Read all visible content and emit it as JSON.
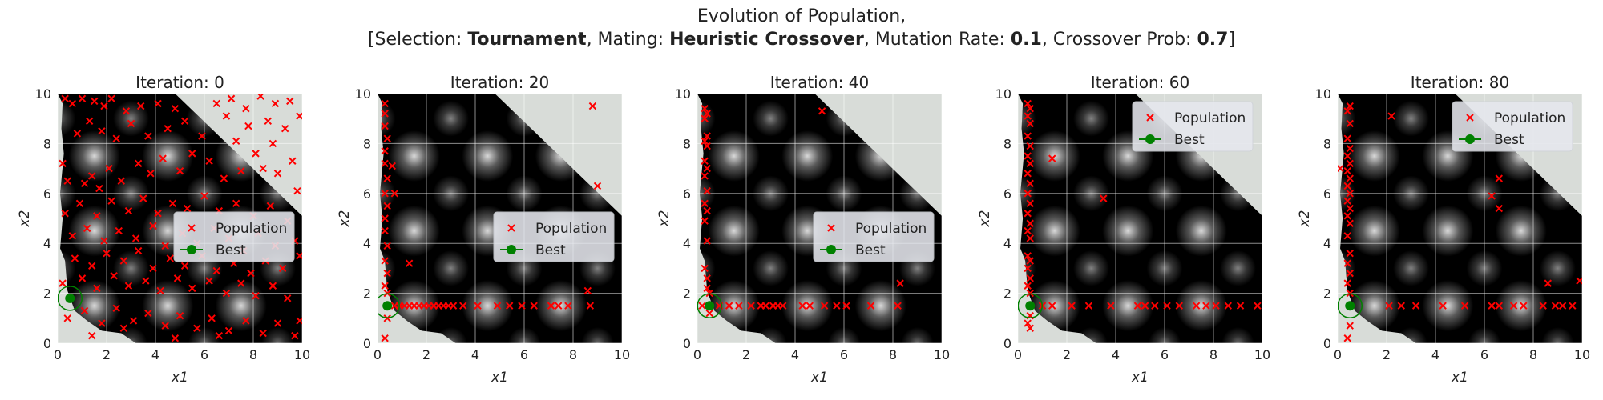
{
  "figure": {
    "title_line1": "Evolution of Population,",
    "title_line2": {
      "selection_label": "[Selection: ",
      "selection_value": "Tournament",
      "mating_label": ", Mating: ",
      "mating_value": "Heuristic Crossover",
      "mutation_label": ", Mutation Rate: ",
      "mutation_value": "0.1",
      "crossover_label": ", Crossover Prob: ",
      "crossover_value": "0.7",
      "closing": "]"
    }
  },
  "colors": {
    "population": "#ff0000",
    "best": "#008000",
    "infeasible": "#d8dcd8",
    "grid": "#ffffff",
    "legend_bg": "#e6e8ee"
  },
  "chart_data": [
    {
      "type": "scatter",
      "title": "Iteration: 0",
      "xlabel": "x1",
      "ylabel": "x2",
      "xlim": [
        0,
        10
      ],
      "ylim": [
        0,
        10
      ],
      "xticks": [
        0,
        2,
        4,
        6,
        8,
        10
      ],
      "yticks": [
        0,
        2,
        4,
        6,
        8,
        10
      ],
      "grid": true,
      "legend": {
        "placement": "center-right",
        "entries": [
          "Population",
          "Best"
        ]
      },
      "best": [
        0.5,
        1.8
      ],
      "population": [
        [
          0.3,
          9.8
        ],
        [
          0.6,
          9.6
        ],
        [
          1.0,
          9.8
        ],
        [
          1.5,
          9.7
        ],
        [
          1.9,
          9.5
        ],
        [
          2.2,
          9.8
        ],
        [
          2.8,
          9.3
        ],
        [
          3.4,
          9.5
        ],
        [
          4.1,
          9.6
        ],
        [
          4.8,
          9.4
        ],
        [
          0.2,
          7.2
        ],
        [
          0.8,
          8.4
        ],
        [
          1.3,
          8.9
        ],
        [
          1.8,
          8.5
        ],
        [
          2.4,
          8.2
        ],
        [
          3.0,
          8.8
        ],
        [
          3.7,
          8.3
        ],
        [
          4.5,
          8.6
        ],
        [
          5.2,
          8.9
        ],
        [
          5.9,
          8.3
        ],
        [
          6.5,
          9.6
        ],
        [
          7.1,
          9.8
        ],
        [
          7.7,
          9.4
        ],
        [
          8.3,
          9.9
        ],
        [
          8.9,
          9.6
        ],
        [
          9.5,
          9.7
        ],
        [
          6.9,
          9.1
        ],
        [
          7.8,
          8.7
        ],
        [
          8.6,
          8.9
        ],
        [
          9.3,
          8.6
        ],
        [
          9.9,
          9.1
        ],
        [
          7.3,
          8.1
        ],
        [
          8.1,
          7.6
        ],
        [
          8.8,
          8.0
        ],
        [
          9.6,
          7.3
        ],
        [
          9.0,
          6.8
        ],
        [
          9.8,
          6.1
        ],
        [
          8.4,
          7.0
        ],
        [
          0.4,
          6.5
        ],
        [
          1.1,
          6.4
        ],
        [
          1.4,
          6.7
        ],
        [
          1.7,
          6.2
        ],
        [
          2.1,
          7.0
        ],
        [
          2.6,
          6.5
        ],
        [
          3.3,
          7.2
        ],
        [
          3.8,
          6.8
        ],
        [
          4.3,
          7.4
        ],
        [
          5.0,
          6.9
        ],
        [
          5.5,
          7.6
        ],
        [
          6.2,
          7.3
        ],
        [
          6.8,
          6.6
        ],
        [
          7.5,
          6.9
        ],
        [
          0.3,
          5.2
        ],
        [
          0.9,
          5.6
        ],
        [
          1.6,
          5.1
        ],
        [
          2.2,
          5.7
        ],
        [
          2.9,
          5.3
        ],
        [
          3.5,
          5.8
        ],
        [
          4.1,
          5.2
        ],
        [
          4.7,
          5.6
        ],
        [
          5.3,
          5.4
        ],
        [
          6.0,
          5.9
        ],
        [
          6.6,
          5.3
        ],
        [
          7.3,
          5.6
        ],
        [
          8.0,
          5.1
        ],
        [
          8.7,
          5.5
        ],
        [
          9.4,
          4.9
        ],
        [
          0.6,
          4.3
        ],
        [
          1.2,
          4.6
        ],
        [
          1.9,
          4.1
        ],
        [
          2.5,
          4.5
        ],
        [
          3.2,
          4.2
        ],
        [
          3.9,
          4.7
        ],
        [
          4.4,
          3.9
        ],
        [
          5.1,
          4.4
        ],
        [
          5.7,
          4.0
        ],
        [
          6.4,
          4.6
        ],
        [
          7.0,
          4.2
        ],
        [
          7.6,
          3.7
        ],
        [
          8.2,
          4.4
        ],
        [
          8.9,
          3.9
        ],
        [
          9.7,
          4.1
        ],
        [
          0.7,
          3.4
        ],
        [
          1.4,
          3.1
        ],
        [
          2.0,
          3.6
        ],
        [
          2.7,
          3.3
        ],
        [
          3.3,
          3.7
        ],
        [
          3.9,
          3.0
        ],
        [
          4.6,
          3.4
        ],
        [
          5.2,
          3.1
        ],
        [
          5.9,
          3.5
        ],
        [
          6.5,
          2.9
        ],
        [
          7.2,
          3.2
        ],
        [
          7.9,
          2.8
        ],
        [
          8.5,
          3.3
        ],
        [
          9.2,
          3.0
        ],
        [
          9.9,
          3.5
        ],
        [
          0.2,
          2.4
        ],
        [
          1.0,
          2.6
        ],
        [
          1.6,
          2.2
        ],
        [
          2.3,
          2.7
        ],
        [
          2.9,
          2.3
        ],
        [
          3.6,
          2.5
        ],
        [
          4.2,
          2.1
        ],
        [
          4.9,
          2.6
        ],
        [
          5.5,
          2.2
        ],
        [
          6.2,
          2.5
        ],
        [
          6.9,
          2.0
        ],
        [
          7.5,
          2.4
        ],
        [
          8.1,
          1.9
        ],
        [
          8.8,
          2.3
        ],
        [
          9.4,
          1.8
        ],
        [
          0.4,
          1.0
        ],
        [
          1.1,
          1.3
        ],
        [
          1.8,
          0.8
        ],
        [
          2.4,
          1.4
        ],
        [
          3.1,
          0.9
        ],
        [
          3.7,
          1.2
        ],
        [
          4.4,
          0.7
        ],
        [
          5.0,
          1.1
        ],
        [
          5.7,
          0.6
        ],
        [
          6.3,
          1.0
        ],
        [
          7.0,
          0.5
        ],
        [
          7.7,
          0.9
        ],
        [
          8.4,
          0.4
        ],
        [
          9.0,
          0.8
        ],
        [
          9.7,
          0.3
        ],
        [
          1.4,
          0.3
        ],
        [
          2.7,
          0.6
        ],
        [
          4.8,
          0.2
        ],
        [
          6.6,
          0.3
        ],
        [
          9.9,
          0.9
        ]
      ]
    },
    {
      "type": "scatter",
      "title": "Iteration: 20",
      "xlabel": "x1",
      "ylabel": "x2",
      "xlim": [
        0,
        10
      ],
      "ylim": [
        0,
        10
      ],
      "xticks": [
        0,
        2,
        4,
        6,
        8,
        10
      ],
      "yticks": [
        0,
        2,
        4,
        6,
        8,
        10
      ],
      "grid": true,
      "legend": {
        "placement": "center-right",
        "entries": [
          "Population",
          "Best"
        ]
      },
      "best": [
        0.4,
        1.5
      ],
      "population": [
        [
          0.3,
          9.6
        ],
        [
          0.3,
          9.2
        ],
        [
          0.3,
          8.7
        ],
        [
          0.4,
          8.2
        ],
        [
          0.3,
          7.7
        ],
        [
          0.3,
          7.2
        ],
        [
          0.4,
          6.6
        ],
        [
          0.3,
          6.0
        ],
        [
          0.4,
          5.5
        ],
        [
          0.3,
          5.0
        ],
        [
          0.3,
          4.5
        ],
        [
          0.4,
          3.9
        ],
        [
          0.3,
          3.3
        ],
        [
          0.4,
          2.8
        ],
        [
          0.3,
          2.3
        ],
        [
          0.4,
          2.0
        ],
        [
          0.4,
          1.0
        ],
        [
          0.3,
          0.2
        ],
        [
          0.6,
          7.1
        ],
        [
          0.7,
          6.0
        ],
        [
          1.3,
          3.2
        ],
        [
          8.8,
          9.5
        ],
        [
          9.0,
          6.3
        ],
        [
          8.6,
          2.1
        ],
        [
          8.7,
          1.5
        ],
        [
          0.7,
          1.5
        ],
        [
          0.9,
          1.5
        ],
        [
          1.1,
          1.5
        ],
        [
          1.3,
          1.5
        ],
        [
          1.5,
          1.5
        ],
        [
          1.7,
          1.5
        ],
        [
          1.9,
          1.5
        ],
        [
          2.1,
          1.5
        ],
        [
          2.3,
          1.5
        ],
        [
          2.5,
          1.5
        ],
        [
          2.7,
          1.5
        ],
        [
          2.9,
          1.5
        ],
        [
          3.1,
          1.5
        ],
        [
          3.5,
          1.5
        ],
        [
          4.1,
          1.5
        ],
        [
          4.9,
          1.5
        ],
        [
          5.4,
          1.5
        ],
        [
          5.9,
          1.5
        ],
        [
          6.4,
          1.5
        ],
        [
          7.1,
          1.5
        ],
        [
          7.4,
          1.5
        ],
        [
          7.8,
          1.5
        ]
      ]
    },
    {
      "type": "scatter",
      "title": "Iteration: 40",
      "xlabel": "x1",
      "ylabel": "x2",
      "xlim": [
        0,
        10
      ],
      "ylim": [
        0,
        10
      ],
      "xticks": [
        0,
        2,
        4,
        6,
        8,
        10
      ],
      "yticks": [
        0,
        2,
        4,
        6,
        8,
        10
      ],
      "grid": true,
      "legend": {
        "placement": "center-right",
        "entries": [
          "Population",
          "Best"
        ]
      },
      "best": [
        0.5,
        1.5
      ],
      "population": [
        [
          0.3,
          9.4
        ],
        [
          0.4,
          9.2
        ],
        [
          0.3,
          9.0
        ],
        [
          0.4,
          8.3
        ],
        [
          0.3,
          8.1
        ],
        [
          0.4,
          7.9
        ],
        [
          0.3,
          7.3
        ],
        [
          0.4,
          7.0
        ],
        [
          0.3,
          6.7
        ],
        [
          0.4,
          6.1
        ],
        [
          0.3,
          5.6
        ],
        [
          0.4,
          5.3
        ],
        [
          0.3,
          4.9
        ],
        [
          0.4,
          4.1
        ],
        [
          0.3,
          3.0
        ],
        [
          0.4,
          2.6
        ],
        [
          0.4,
          2.2
        ],
        [
          0.5,
          2.0
        ],
        [
          0.5,
          1.2
        ],
        [
          0.2,
          1.5
        ],
        [
          5.1,
          9.3
        ],
        [
          0.9,
          1.5
        ],
        [
          1.3,
          1.5
        ],
        [
          1.7,
          1.5
        ],
        [
          2.2,
          1.5
        ],
        [
          2.6,
          1.5
        ],
        [
          2.8,
          1.5
        ],
        [
          3.1,
          1.5
        ],
        [
          3.3,
          1.5
        ],
        [
          3.5,
          1.5
        ],
        [
          4.3,
          1.5
        ],
        [
          4.6,
          1.5
        ],
        [
          5.2,
          1.5
        ],
        [
          5.7,
          1.5
        ],
        [
          6.1,
          1.5
        ],
        [
          7.1,
          1.5
        ],
        [
          8.2,
          1.5
        ],
        [
          8.3,
          2.4
        ]
      ]
    },
    {
      "type": "scatter",
      "title": "Iteration: 60",
      "xlabel": "x1",
      "ylabel": "x2",
      "xlim": [
        0,
        10
      ],
      "ylim": [
        0,
        10
      ],
      "xticks": [
        0,
        2,
        4,
        6,
        8,
        10
      ],
      "yticks": [
        0,
        2,
        4,
        6,
        8,
        10
      ],
      "grid": true,
      "legend": {
        "placement": "upper-right",
        "entries": [
          "Population",
          "Best"
        ]
      },
      "best": [
        0.5,
        1.5
      ],
      "population": [
        [
          0.4,
          9.6
        ],
        [
          0.5,
          9.4
        ],
        [
          0.4,
          9.1
        ],
        [
          0.5,
          8.8
        ],
        [
          0.4,
          8.3
        ],
        [
          0.5,
          7.9
        ],
        [
          0.4,
          7.5
        ],
        [
          0.5,
          7.2
        ],
        [
          0.4,
          6.8
        ],
        [
          0.5,
          6.4
        ],
        [
          0.4,
          6.0
        ],
        [
          0.5,
          5.6
        ],
        [
          0.4,
          5.2
        ],
        [
          0.5,
          4.8
        ],
        [
          0.4,
          4.5
        ],
        [
          0.5,
          4.2
        ],
        [
          0.4,
          3.5
        ],
        [
          0.5,
          3.3
        ],
        [
          0.4,
          3.0
        ],
        [
          0.5,
          2.6
        ],
        [
          0.4,
          2.3
        ],
        [
          0.5,
          2.0
        ],
        [
          0.5,
          1.1
        ],
        [
          0.4,
          0.8
        ],
        [
          0.5,
          0.6
        ],
        [
          1.4,
          7.4
        ],
        [
          3.5,
          5.8
        ],
        [
          1.0,
          1.5
        ],
        [
          1.4,
          1.5
        ],
        [
          2.2,
          1.5
        ],
        [
          2.9,
          1.5
        ],
        [
          3.8,
          1.5
        ],
        [
          4.9,
          1.5
        ],
        [
          5.2,
          1.5
        ],
        [
          5.6,
          1.5
        ],
        [
          6.1,
          1.5
        ],
        [
          6.6,
          1.5
        ],
        [
          7.3,
          1.5
        ],
        [
          7.7,
          1.5
        ],
        [
          8.1,
          1.5
        ],
        [
          8.6,
          1.5
        ],
        [
          9.1,
          1.5
        ],
        [
          9.8,
          1.5
        ]
      ]
    },
    {
      "type": "scatter",
      "title": "Iteration: 80",
      "xlabel": "x1",
      "ylabel": "x2",
      "xlim": [
        0,
        10
      ],
      "ylim": [
        0,
        10
      ],
      "xticks": [
        0,
        2,
        4,
        6,
        8,
        10
      ],
      "yticks": [
        0,
        2,
        4,
        6,
        8,
        10
      ],
      "grid": true,
      "legend": {
        "placement": "upper-right",
        "entries": [
          "Population",
          "Best"
        ]
      },
      "best": [
        0.5,
        1.5
      ],
      "population": [
        [
          0.5,
          9.5
        ],
        [
          0.4,
          9.3
        ],
        [
          0.5,
          8.8
        ],
        [
          0.4,
          8.2
        ],
        [
          0.5,
          7.8
        ],
        [
          0.4,
          7.5
        ],
        [
          0.5,
          7.2
        ],
        [
          0.4,
          6.9
        ],
        [
          0.5,
          6.6
        ],
        [
          0.4,
          6.3
        ],
        [
          0.5,
          6.0
        ],
        [
          0.4,
          5.7
        ],
        [
          0.5,
          5.4
        ],
        [
          0.4,
          5.1
        ],
        [
          0.5,
          4.8
        ],
        [
          0.4,
          4.3
        ],
        [
          0.5,
          3.6
        ],
        [
          0.4,
          3.2
        ],
        [
          0.5,
          2.8
        ],
        [
          0.4,
          2.4
        ],
        [
          0.5,
          2.0
        ],
        [
          0.5,
          0.7
        ],
        [
          0.4,
          0.2
        ],
        [
          0.1,
          7.0
        ],
        [
          2.2,
          9.1
        ],
        [
          6.3,
          5.9
        ],
        [
          6.6,
          6.6
        ],
        [
          6.6,
          5.4
        ],
        [
          8.6,
          2.4
        ],
        [
          9.9,
          2.5
        ],
        [
          2.1,
          1.5
        ],
        [
          2.6,
          1.5
        ],
        [
          3.2,
          1.5
        ],
        [
          4.3,
          1.5
        ],
        [
          5.2,
          1.5
        ],
        [
          6.3,
          1.5
        ],
        [
          6.6,
          1.5
        ],
        [
          7.2,
          1.5
        ],
        [
          7.6,
          1.5
        ],
        [
          8.4,
          1.5
        ],
        [
          8.9,
          1.5
        ],
        [
          9.2,
          1.5
        ],
        [
          9.6,
          1.5
        ]
      ]
    }
  ]
}
